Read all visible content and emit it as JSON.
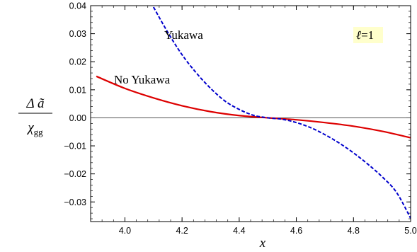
{
  "chart_data": {
    "type": "line",
    "xlabel": "x",
    "ylabel_numerator": "Δ ã",
    "ylabel_denominator": "χ",
    "ylabel_denominator_sub": "gg",
    "xlim": [
      3.88,
      5.0
    ],
    "ylim": [
      -0.037,
      0.04
    ],
    "xticks": [
      4.0,
      4.2,
      4.4,
      4.6,
      4.8,
      5.0
    ],
    "xtick_labels": [
      "4.0",
      "4.2",
      "4.4",
      "4.6",
      "4.8",
      "5.0"
    ],
    "yticks": [
      0.04,
      0.03,
      0.02,
      0.01,
      0.0,
      -0.01,
      -0.02,
      -0.03
    ],
    "ytick_labels": [
      "0.04",
      "0.03",
      "0.02",
      "0.01",
      "0.00",
      "−0.01",
      "−0.02",
      "−0.03"
    ],
    "annotation": {
      "ell": "ℓ",
      "rest": "=1",
      "background": "#ffffcc"
    },
    "series": [
      {
        "name": "No Yukawa",
        "color": "#dd0000",
        "style": "solid",
        "x": [
          3.9,
          4.0,
          4.1,
          4.2,
          4.3,
          4.4,
          4.5,
          4.6,
          4.7,
          4.8,
          4.9,
          5.0
        ],
        "y": [
          0.0148,
          0.0105,
          0.0071,
          0.0043,
          0.0022,
          0.0008,
          0.0,
          -0.0007,
          -0.0017,
          -0.003,
          -0.0048,
          -0.0071
        ]
      },
      {
        "name": "Yukawa",
        "color": "#0000cc",
        "style": "dashed",
        "x": [
          4.1,
          4.15,
          4.2,
          4.25,
          4.3,
          4.35,
          4.4,
          4.45,
          4.5,
          4.55,
          4.6,
          4.65,
          4.7,
          4.75,
          4.8,
          4.85,
          4.9,
          4.95,
          5.0
        ],
        "y": [
          0.0395,
          0.0305,
          0.0225,
          0.016,
          0.0105,
          0.006,
          0.003,
          0.0009,
          0.0,
          -0.0005,
          -0.0017,
          -0.0035,
          -0.006,
          -0.009,
          -0.0125,
          -0.0165,
          -0.021,
          -0.0265,
          -0.0358
        ]
      }
    ]
  }
}
